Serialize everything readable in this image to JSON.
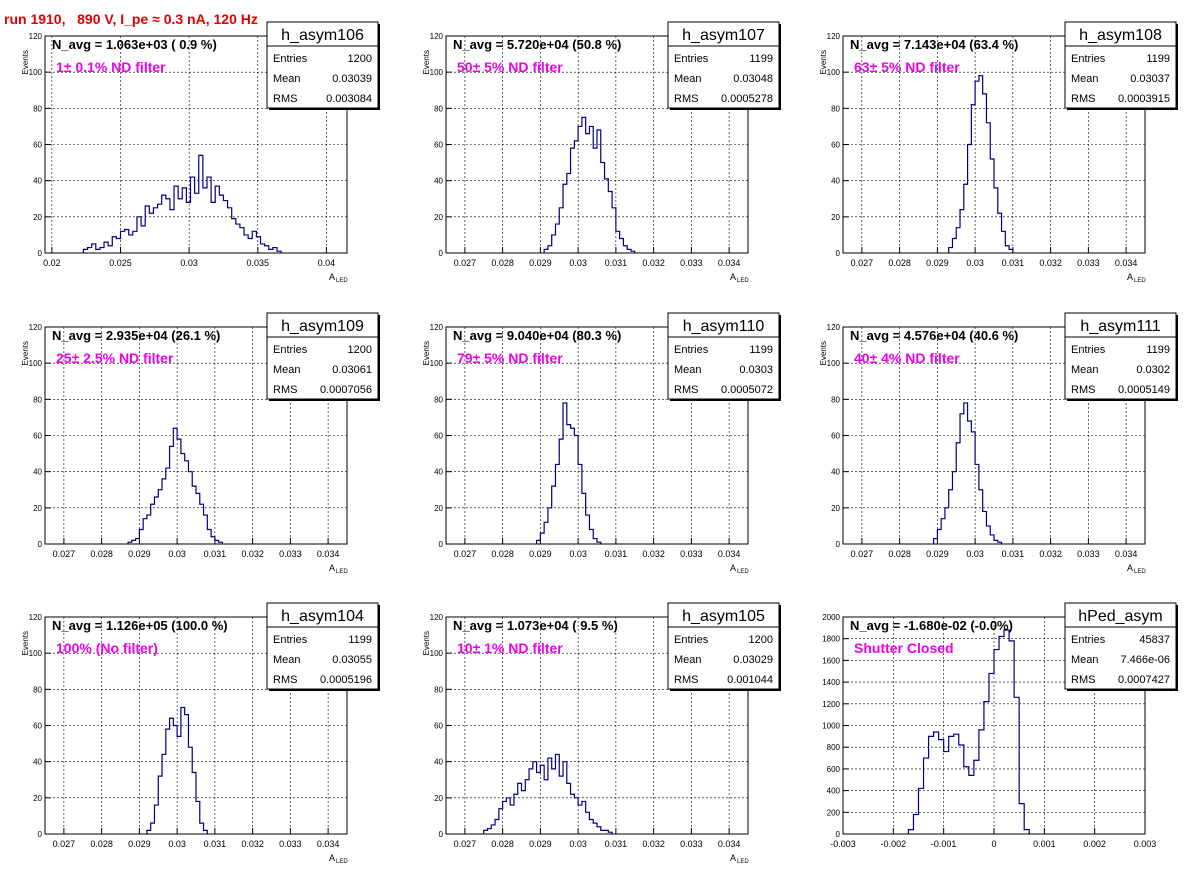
{
  "run_title": "run 1910,   890 V, I_pe ≈ 0.3 nA, 120 Hz",
  "colors": {
    "histogram": "#000080",
    "annotation": "#ee00ee",
    "title": "#e00000",
    "grid": "#000000"
  },
  "stats_labels": {
    "entries": "Entries",
    "mean": "Mean",
    "rms": "RMS"
  },
  "chart_data": [
    {
      "type": "bar",
      "name": "h_asym106",
      "navg": "N_avg = 1.063e+03 ( 0.9 %)",
      "filter": "1± 0.1% ND filter",
      "entries": "1200",
      "mean": "0.03039",
      "rms": "0.003084",
      "xlabel": "A",
      "xlabel_sub": "LED",
      "ylabel": "Events",
      "xlim": [
        0.0195,
        0.0415
      ],
      "ylim": [
        0,
        120
      ],
      "xticks": [
        "0.02",
        "0.025",
        "0.03",
        "0.035",
        "0.04"
      ],
      "xtick_values": [
        0.02,
        0.025,
        0.03,
        0.035,
        0.04
      ],
      "yticks": [
        0,
        20,
        40,
        60,
        80,
        100,
        120
      ],
      "bins": {
        "x0": 0.0223,
        "w": 0.0003,
        "values": [
          2,
          3,
          5,
          2,
          3,
          6,
          4,
          9,
          8,
          12,
          13,
          10,
          12,
          20,
          15,
          26,
          22,
          25,
          27,
          32,
          30,
          24,
          37,
          30,
          36,
          28,
          42,
          33,
          54,
          36,
          42,
          28,
          37,
          32,
          29,
          25,
          19,
          16,
          14,
          10,
          8,
          12,
          9,
          5,
          4,
          2,
          3,
          1
        ]
      }
    },
    {
      "type": "bar",
      "name": "h_asym107",
      "navg": "N_avg = 5.720e+04 (50.8 %)",
      "filter": "50± 5% ND filter",
      "entries": "1199",
      "mean": "0.03048",
      "rms": "0.0005278",
      "xlabel": "A",
      "xlabel_sub": "LED",
      "ylabel": "Events",
      "xlim": [
        0.0265,
        0.0345
      ],
      "ylim": [
        0,
        120
      ],
      "xticks": [
        "0.027",
        "0.028",
        "0.029",
        "0.03",
        "0.031",
        "0.032",
        "0.033",
        "0.034"
      ],
      "xtick_values": [
        0.027,
        0.028,
        0.029,
        0.03,
        0.031,
        0.032,
        0.033,
        0.034
      ],
      "yticks": [
        0,
        20,
        40,
        60,
        80,
        100,
        120
      ],
      "bins": {
        "x0": 0.0291,
        "w": 0.0001,
        "values": [
          2,
          4,
          10,
          16,
          25,
          38,
          44,
          58,
          62,
          70,
          75,
          66,
          70,
          58,
          68,
          50,
          41,
          34,
          25,
          12,
          8,
          4,
          2,
          1
        ]
      }
    },
    {
      "type": "bar",
      "name": "h_asym108",
      "navg": "N_avg = 7.143e+04 (63.4 %)",
      "filter": "63± 5% ND filter",
      "entries": "1199",
      "mean": "0.03037",
      "rms": "0.0003915",
      "xlabel": "A",
      "xlabel_sub": "LED",
      "ylabel": "Events",
      "xlim": [
        0.0265,
        0.0345
      ],
      "ylim": [
        0,
        120
      ],
      "xticks": [
        "0.027",
        "0.028",
        "0.029",
        "0.03",
        "0.031",
        "0.032",
        "0.033",
        "0.034"
      ],
      "xtick_values": [
        0.027,
        0.028,
        0.029,
        0.03,
        0.031,
        0.032,
        0.033,
        0.034
      ],
      "yticks": [
        0,
        20,
        40,
        60,
        80,
        100,
        120
      ],
      "bins": {
        "x0": 0.0293,
        "w": 0.0001,
        "values": [
          3,
          8,
          14,
          24,
          38,
          60,
          82,
          95,
          98,
          88,
          72,
          52,
          36,
          22,
          12,
          4,
          2
        ]
      }
    },
    {
      "type": "bar",
      "name": "h_asym109",
      "navg": "N_avg = 2.935e+04 (26.1 %)",
      "filter": "25± 2.5% ND filter",
      "entries": "1200",
      "mean": "0.03061",
      "rms": "0.0007056",
      "xlabel": "A",
      "xlabel_sub": "LED",
      "ylabel": "Events",
      "xlim": [
        0.0265,
        0.0345
      ],
      "ylim": [
        0,
        120
      ],
      "xticks": [
        "0.027",
        "0.028",
        "0.029",
        "0.03",
        "0.031",
        "0.032",
        "0.033",
        "0.034"
      ],
      "xtick_values": [
        0.027,
        0.028,
        0.029,
        0.03,
        0.031,
        0.032,
        0.033,
        0.034
      ],
      "yticks": [
        0,
        20,
        40,
        60,
        80,
        100,
        120
      ],
      "bins": {
        "x0": 0.0287,
        "w": 0.0001,
        "values": [
          1,
          2,
          3,
          8,
          14,
          16,
          22,
          26,
          30,
          36,
          42,
          54,
          64,
          58,
          50,
          46,
          40,
          32,
          28,
          22,
          16,
          8,
          4,
          2,
          1
        ]
      }
    },
    {
      "type": "bar",
      "name": "h_asym110",
      "navg": "N_avg = 9.040e+04 (80.3 %)",
      "filter": "79± 5% ND filter",
      "entries": "1199",
      "mean": "0.0303",
      "rms": "0.0005072",
      "xlabel": "A",
      "xlabel_sub": "LED",
      "ylabel": "Events",
      "xlim": [
        0.0265,
        0.0345
      ],
      "ylim": [
        0,
        120
      ],
      "xticks": [
        "0.027",
        "0.028",
        "0.029",
        "0.03",
        "0.031",
        "0.032",
        "0.033",
        "0.034"
      ],
      "xtick_values": [
        0.027,
        0.028,
        0.029,
        0.03,
        0.031,
        0.032,
        0.033,
        0.034
      ],
      "yticks": [
        0,
        20,
        40,
        60,
        80,
        100,
        120
      ],
      "bins": {
        "x0": 0.0289,
        "w": 0.0001,
        "values": [
          2,
          6,
          12,
          20,
          32,
          44,
          58,
          78,
          66,
          64,
          60,
          44,
          28,
          16,
          8,
          3,
          1
        ]
      }
    },
    {
      "type": "bar",
      "name": "h_asym111",
      "navg": "N_avg = 4.576e+04 (40.6 %)",
      "filter": "40± 4% ND filter",
      "entries": "1199",
      "mean": "0.0302",
      "rms": "0.0005149",
      "xlabel": "A",
      "xlabel_sub": "LED",
      "ylabel": "Events",
      "xlim": [
        0.0265,
        0.0345
      ],
      "ylim": [
        0,
        120
      ],
      "xticks": [
        "0.027",
        "0.028",
        "0.029",
        "0.03",
        "0.031",
        "0.032",
        "0.033",
        "0.034"
      ],
      "xtick_values": [
        0.027,
        0.028,
        0.029,
        0.03,
        0.031,
        0.032,
        0.033,
        0.034
      ],
      "yticks": [
        0,
        20,
        40,
        60,
        80,
        100,
        120
      ],
      "bins": {
        "x0": 0.0289,
        "w": 0.0001,
        "values": [
          3,
          8,
          14,
          20,
          30,
          40,
          56,
          72,
          78,
          68,
          62,
          44,
          30,
          18,
          10,
          5,
          2,
          1
        ]
      }
    },
    {
      "type": "bar",
      "name": "h_asym104",
      "navg": "N_avg = 1.126e+05 (100.0 %)",
      "filter": "100% (No filter)",
      "entries": "1199",
      "mean": "0.03055",
      "rms": "0.0005196",
      "xlabel": "A",
      "xlabel_sub": "LED",
      "ylabel": "Events",
      "xlim": [
        0.0265,
        0.0345
      ],
      "ylim": [
        0,
        120
      ],
      "xticks": [
        "0.027",
        "0.028",
        "0.029",
        "0.03",
        "0.031",
        "0.032",
        "0.033",
        "0.034"
      ],
      "xtick_values": [
        0.027,
        0.028,
        0.029,
        0.03,
        0.031,
        0.032,
        0.033,
        0.034
      ],
      "yticks": [
        0,
        20,
        40,
        60,
        80,
        100,
        120
      ],
      "bins": {
        "x0": 0.0292,
        "w": 0.0001,
        "values": [
          2,
          6,
          16,
          32,
          44,
          58,
          64,
          60,
          54,
          70,
          66,
          48,
          34,
          18,
          6,
          2
        ]
      }
    },
    {
      "type": "bar",
      "name": "h_asym105",
      "navg": "N_avg = 1.073e+04 ( 9.5 %)",
      "filter": "10± 1% ND filter",
      "entries": "1200",
      "mean": "0.03029",
      "rms": "0.001044",
      "xlabel": "A",
      "xlabel_sub": "LED",
      "ylabel": "Events",
      "xlim": [
        0.0265,
        0.0345
      ],
      "ylim": [
        0,
        120
      ],
      "xticks": [
        "0.027",
        "0.028",
        "0.029",
        "0.03",
        "0.031",
        "0.032",
        "0.033",
        "0.034"
      ],
      "xtick_values": [
        0.027,
        0.028,
        0.029,
        0.03,
        0.031,
        0.032,
        0.033,
        0.034
      ],
      "yticks": [
        0,
        20,
        40,
        60,
        80,
        100,
        120
      ],
      "bins": {
        "x0": 0.0275,
        "w": 0.0001,
        "values": [
          2,
          3,
          5,
          8,
          14,
          18,
          20,
          16,
          22,
          28,
          24,
          30,
          36,
          40,
          34,
          38,
          30,
          42,
          36,
          44,
          32,
          40,
          28,
          22,
          20,
          16,
          18,
          12,
          8,
          6,
          4,
          2,
          2,
          1
        ]
      }
    },
    {
      "type": "bar",
      "name": "hPed_asym",
      "navg": "N_avg = -1.680e-02 (-0.0%)",
      "filter": "Shutter Closed",
      "entries": "45837",
      "mean": "7.466e-06",
      "rms": "0.0007427",
      "xlabel": "",
      "xlabel_sub": "",
      "ylabel": "",
      "xlim": [
        -0.003,
        0.003
      ],
      "ylim": [
        0,
        2000
      ],
      "xticks": [
        "-0.003",
        "-0.002",
        "-0.001",
        "0",
        "0.001",
        "0.002",
        "0.003"
      ],
      "xtick_values": [
        -0.003,
        -0.002,
        -0.001,
        0,
        0.001,
        0.002,
        0.003
      ],
      "yticks": [
        0,
        200,
        400,
        600,
        800,
        1000,
        1200,
        1400,
        1600,
        1800,
        2000
      ],
      "bins": {
        "x0": -0.0017,
        "w": 0.0001,
        "values": [
          40,
          180,
          420,
          700,
          900,
          940,
          870,
          760,
          900,
          920,
          820,
          620,
          540,
          680,
          960,
          1220,
          1480,
          1700,
          1820,
          1880,
          1780,
          1260,
          280,
          40
        ]
      }
    }
  ]
}
